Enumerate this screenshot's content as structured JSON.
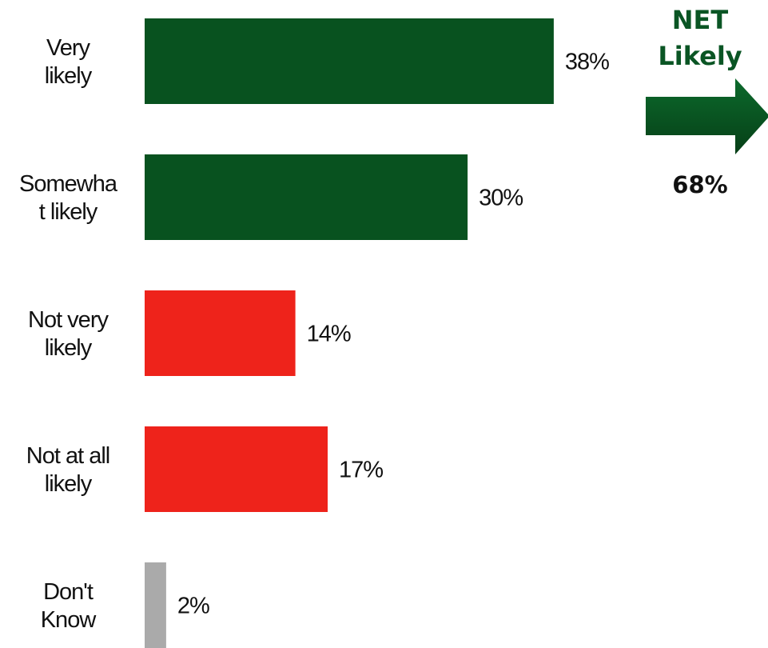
{
  "chart_data": {
    "type": "bar",
    "orientation": "horizontal",
    "categories": [
      [
        "Very",
        "likely"
      ],
      [
        "Somewha",
        "t likely"
      ],
      [
        "Not very",
        "likely"
      ],
      [
        "Not at all",
        "likely"
      ],
      [
        "Don't",
        "Know"
      ]
    ],
    "values": [
      38,
      30,
      14,
      17,
      2
    ],
    "value_labels": [
      "38%",
      "30%",
      "14%",
      "17%",
      "2%"
    ],
    "bar_colors": [
      "#08521f",
      "#08521f",
      "#ee231b",
      "#ee231b",
      "#aaaaaa"
    ],
    "xlim": [
      0,
      100
    ],
    "grid": false,
    "legend": "none"
  },
  "net": {
    "title_line1": "NET",
    "title_line2": "Likely",
    "value": "68%",
    "color": "#0a5524",
    "arrow_color": "#08521f"
  }
}
